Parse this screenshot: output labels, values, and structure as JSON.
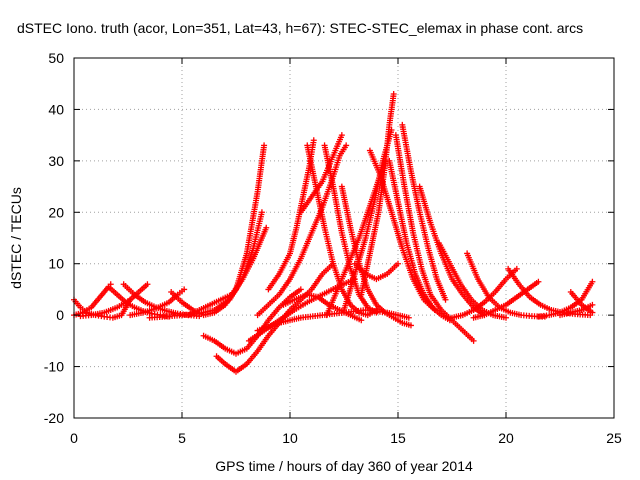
{
  "chart_data": {
    "type": "scatter",
    "title": "dSTEC Iono. truth (acor, Lon=351, Lat=43, h=67): STEC-STEC_elemax in phase cont. arcs",
    "xlabel": "GPS time / hours of day 360 of year 2014",
    "ylabel": "dSTEC  / TECUs",
    "xlim": [
      0,
      25
    ],
    "ylim": [
      -20,
      50
    ],
    "xticks": [
      0,
      5,
      10,
      15,
      20,
      25
    ],
    "yticks": [
      -20,
      -10,
      0,
      10,
      20,
      30,
      40,
      50
    ],
    "xtick_labels": [
      "0",
      "5",
      "10",
      "15",
      "20",
      "25"
    ],
    "ytick_labels": [
      "-20",
      "-10",
      "0",
      "10",
      "20",
      "30",
      "40",
      "50"
    ],
    "grid": true,
    "marker": "+",
    "color": "#ff0000",
    "series": [
      {
        "x": [
          0.0,
          0.3,
          0.6,
          1.0,
          1.4,
          1.8,
          2.2,
          2.6
        ],
        "y": [
          3,
          1.5,
          0.5,
          0,
          -0.3,
          -0.5,
          0,
          3
        ]
      },
      {
        "x": [
          0.0,
          0.4,
          0.8,
          1.2,
          1.6,
          1.7
        ],
        "y": [
          0,
          0.5,
          1.5,
          3.5,
          5.5,
          6
        ]
      },
      {
        "x": [
          1.6,
          2.0,
          2.4,
          2.8,
          3.2,
          3.6,
          4.0,
          4.4
        ],
        "y": [
          5.5,
          4,
          2.5,
          1.5,
          0.8,
          0.3,
          0,
          -0.3
        ]
      },
      {
        "x": [
          0.3,
          0.8,
          1.4,
          2.0,
          2.6,
          3.0,
          3.4
        ],
        "y": [
          -0.2,
          0,
          0.5,
          1.5,
          3,
          4.5,
          6
        ]
      },
      {
        "x": [
          2.3,
          2.8,
          3.3,
          3.8,
          4.3,
          4.8,
          5.3,
          5.8
        ],
        "y": [
          6,
          4,
          2.5,
          1.5,
          0.8,
          0.3,
          0,
          -0.2
        ]
      },
      {
        "x": [
          2.6,
          3.2,
          3.8,
          4.4,
          4.8,
          5.1
        ],
        "y": [
          0,
          0.5,
          1.3,
          2.5,
          4,
          5
        ]
      },
      {
        "x": [
          4.5,
          5.0,
          5.5,
          6.0,
          6.5,
          7.0,
          7.5,
          8.0,
          8.5,
          8.8
        ],
        "y": [
          4.5,
          2.5,
          1,
          0,
          0.5,
          2,
          5,
          12,
          24,
          33
        ]
      },
      {
        "x": [
          3.5,
          4.2,
          5.0,
          5.8,
          6.5,
          7.2,
          7.8,
          8.3,
          8.7
        ],
        "y": [
          -0.5,
          -0.3,
          0,
          0.3,
          1,
          3,
          7,
          13,
          20
        ]
      },
      {
        "x": [
          5.3,
          5.8,
          6.3,
          6.8,
          7.3,
          7.8,
          8.3,
          8.9
        ],
        "y": [
          0,
          1,
          2,
          3,
          4,
          7,
          11,
          17
        ]
      },
      {
        "x": [
          6.0,
          6.5,
          7.0,
          7.5,
          8.0,
          8.5,
          9.0,
          9.5,
          10.0,
          10.5
        ],
        "y": [
          -4,
          -5,
          -6.5,
          -7.5,
          -6.5,
          -4,
          -1,
          1.5,
          3.5,
          5
        ]
      },
      {
        "x": [
          6.6,
          7.0,
          7.5,
          8.0,
          8.5,
          9.0,
          9.5,
          10.0,
          10.5,
          11.0,
          11.5,
          12.0
        ],
        "y": [
          -8,
          -9.5,
          -11,
          -9.5,
          -7,
          -4,
          -1.5,
          1,
          3,
          5,
          8,
          10
        ]
      },
      {
        "x": [
          8.1,
          8.8,
          9.5,
          10.2,
          10.8,
          11.5,
          12.2,
          13.0
        ],
        "y": [
          -5,
          -3,
          -1,
          1,
          2.5,
          4,
          5.5,
          7
        ]
      },
      {
        "x": [
          8.5,
          9.0,
          9.5,
          10.0,
          10.5,
          11.0,
          11.5,
          12.0,
          12.3,
          12.6
        ],
        "y": [
          0,
          2,
          4,
          7,
          11,
          16,
          21,
          27,
          31,
          33
        ]
      },
      {
        "x": [
          9.0,
          9.5,
          10.0,
          10.3,
          10.6,
          10.9,
          11.1
        ],
        "y": [
          5,
          8,
          12,
          17,
          23,
          29,
          34
        ]
      },
      {
        "x": [
          10.5,
          11.0,
          11.5,
          11.8,
          12.1,
          12.4
        ],
        "y": [
          20,
          23,
          26,
          29,
          32,
          35
        ]
      },
      {
        "x": [
          9.7,
          10.2,
          10.8,
          11.3,
          11.8,
          12.3,
          12.8,
          13.3
        ],
        "y": [
          2,
          3,
          4,
          3.5,
          2,
          1,
          0,
          -1
        ]
      },
      {
        "x": [
          10.8,
          11.2,
          11.6,
          12.0,
          12.4,
          12.8,
          13.2,
          13.6,
          14.0
        ],
        "y": [
          33,
          25,
          17,
          10,
          5,
          2,
          0.5,
          0,
          1
        ]
      },
      {
        "x": [
          11.6,
          12.0,
          12.4,
          12.8,
          13.2,
          13.6,
          14.0
        ],
        "y": [
          33,
          25,
          16,
          9,
          4,
          1.5,
          0.5
        ]
      },
      {
        "x": [
          12.4,
          12.8,
          13.2,
          13.6,
          14.0,
          14.4,
          14.8,
          15.2,
          15.6
        ],
        "y": [
          25,
          17,
          10,
          5,
          2,
          0.5,
          -0.5,
          -1.5,
          -2
        ]
      },
      {
        "x": [
          11.7,
          12.2,
          12.7,
          13.2,
          13.6,
          14.0,
          14.4
        ],
        "y": [
          0,
          5,
          10,
          15,
          20,
          25,
          30
        ]
      },
      {
        "x": [
          12.5,
          13.0,
          13.5,
          13.9,
          14.3,
          14.7
        ],
        "y": [
          1,
          8,
          15,
          22,
          30,
          36
        ]
      },
      {
        "x": [
          13.3,
          13.7,
          14.1,
          14.4,
          14.6,
          14.8
        ],
        "y": [
          4,
          12,
          20,
          29,
          37,
          43
        ]
      },
      {
        "x": [
          13.7,
          14.2,
          14.7,
          15.2,
          15.7,
          16.2,
          16.7
        ],
        "y": [
          32,
          27,
          20,
          13,
          7,
          3,
          1
        ]
      },
      {
        "x": [
          14.6,
          15.0,
          15.4,
          15.8,
          16.2,
          16.6,
          17.0,
          17.4
        ],
        "y": [
          30,
          22,
          14,
          8,
          4,
          1.5,
          0,
          -1
        ]
      },
      {
        "x": [
          15.2,
          15.6,
          16.0,
          16.4,
          16.8,
          17.2
        ],
        "y": [
          37,
          28,
          20,
          13,
          7,
          3
        ]
      },
      {
        "x": [
          14.9,
          15.3,
          15.7,
          16.1,
          16.5,
          17.0,
          17.5,
          18.0,
          18.5
        ],
        "y": [
          35,
          25,
          16,
          9,
          4,
          1,
          -1,
          -3,
          -5
        ]
      },
      {
        "x": [
          16.0,
          16.5,
          17.0,
          17.5,
          18.0,
          18.5,
          19.0
        ],
        "y": [
          25,
          18,
          12,
          7,
          4,
          1.5,
          0
        ]
      },
      {
        "x": [
          16.9,
          17.4,
          17.9,
          18.4,
          18.9,
          19.4,
          20.0
        ],
        "y": [
          14,
          10,
          6,
          3,
          1,
          0,
          -0.5
        ]
      },
      {
        "x": [
          18.2,
          18.7,
          19.2,
          19.7,
          20.2,
          20.7,
          21.2,
          21.8
        ],
        "y": [
          12,
          7,
          3.5,
          1.5,
          0.5,
          0,
          -0.2,
          -0.3
        ]
      },
      {
        "x": [
          20.1,
          20.6,
          21.1,
          21.6,
          22.1,
          22.6,
          23.2,
          23.9
        ],
        "y": [
          9,
          6,
          3.5,
          2,
          1,
          0.5,
          0.2,
          0
        ]
      },
      {
        "x": [
          17.5,
          18.0,
          18.5,
          19.0,
          19.5,
          20.0,
          20.5
        ],
        "y": [
          -0.5,
          0,
          1,
          2.5,
          4.5,
          7,
          9
        ]
      },
      {
        "x": [
          18.5,
          19.0,
          19.5,
          20.0,
          20.5,
          21.0,
          21.5
        ],
        "y": [
          -0.5,
          0,
          1,
          2,
          3.5,
          5,
          6.5
        ]
      },
      {
        "x": [
          21.5,
          22.0,
          22.5,
          23.0,
          23.5,
          24.0
        ],
        "y": [
          -0.3,
          0,
          0.5,
          1.5,
          3,
          6.5
        ]
      },
      {
        "x": [
          22.5,
          23.0,
          23.5,
          24.0
        ],
        "y": [
          0,
          0.5,
          1,
          2
        ]
      },
      {
        "x": [
          23.0,
          23.5,
          24.0
        ],
        "y": [
          4.5,
          2,
          0.5
        ]
      },
      {
        "x": [
          8.5,
          9.5,
          10.5,
          11.5,
          12.5,
          13.5,
          14.5,
          15.5
        ],
        "y": [
          -3,
          -1.5,
          -0.5,
          0,
          0.5,
          1,
          0.5,
          -0.5
        ]
      },
      {
        "x": [
          13.0,
          13.5,
          14.0,
          14.5,
          15.0
        ],
        "y": [
          10,
          8,
          7,
          8,
          10
        ]
      }
    ]
  }
}
